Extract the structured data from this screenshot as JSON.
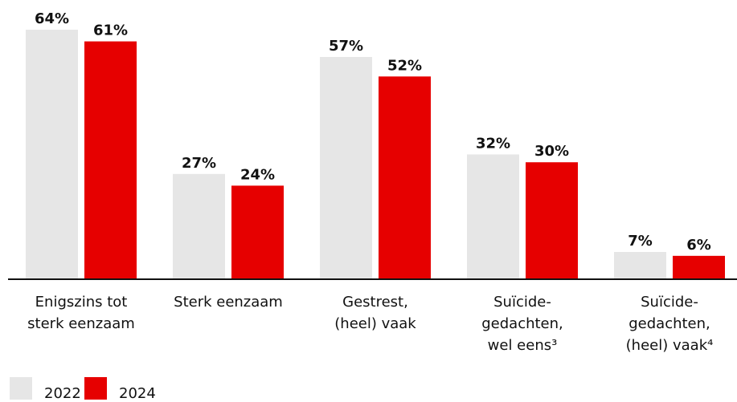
{
  "chart_data": {
    "type": "bar",
    "categories": [
      [
        "Enigszins tot",
        "sterk eenzaam"
      ],
      [
        "Sterk eenzaam"
      ],
      [
        "Gestrest,",
        "(heel) vaak"
      ],
      [
        "Suïcide-",
        "gedachten,",
        "wel eens³"
      ],
      [
        "Suïcide-",
        "gedachten,",
        "(heel) vaak⁴"
      ]
    ],
    "series": [
      {
        "name": "2022",
        "color": "#e6e6e6",
        "values": [
          64,
          27,
          57,
          32,
          7
        ],
        "value_labels": [
          "64%",
          "27%",
          "57%",
          "32%",
          "7%"
        ]
      },
      {
        "name": "2024",
        "color": "#e60000",
        "values": [
          61,
          24,
          52,
          30,
          6
        ],
        "value_labels": [
          "61%",
          "24%",
          "52%",
          "30%",
          "6%"
        ]
      }
    ]
  }
}
